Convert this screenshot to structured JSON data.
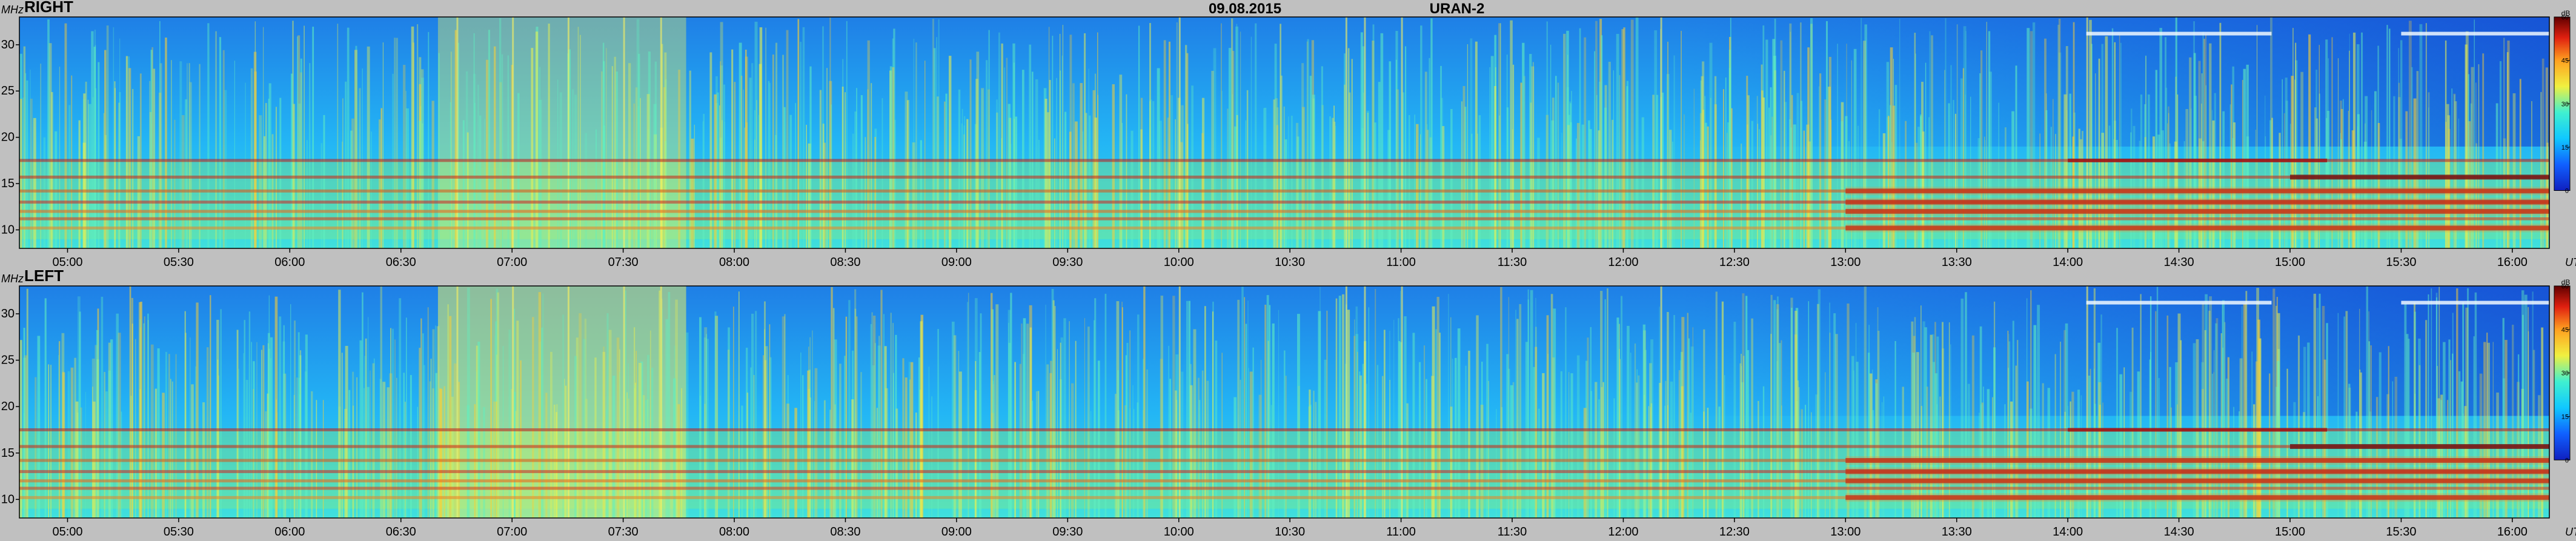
{
  "header": {
    "date": "09.08.2015",
    "instrument": "URAN-2"
  },
  "chart_data": [
    {
      "type": "heatmap",
      "title": "RIGHT",
      "ylabel": "MHz",
      "xlabel": "UT",
      "yticks": [
        10,
        15,
        20,
        25,
        30
      ],
      "ylim": [
        8,
        33
      ],
      "xticks": [
        "05:00",
        "05:30",
        "06:00",
        "06:30",
        "07:00",
        "07:30",
        "08:00",
        "08:30",
        "09:00",
        "09:30",
        "10:00",
        "10:30",
        "11:00",
        "11:30",
        "12:00",
        "12:30",
        "13:00",
        "13:30",
        "14:00",
        "14:30",
        "15:00",
        "15:30",
        "16:00"
      ],
      "xlim": [
        "04:47",
        "16:10"
      ],
      "colorbar": {
        "unit": "dB",
        "ticks": [
          0,
          15,
          30,
          45,
          60
        ],
        "range": [
          0,
          60
        ]
      },
      "bands_mhz": [
        17.5,
        15.7,
        14.2,
        13.0,
        12.0,
        11.2,
        10.2
      ],
      "strong_interval_start": "13:00"
    },
    {
      "type": "heatmap",
      "title": "LEFT",
      "ylabel": "MHz",
      "xlabel": "UT",
      "yticks": [
        10,
        15,
        20,
        25,
        30
      ],
      "ylim": [
        8,
        33
      ],
      "xticks": [
        "05:00",
        "05:30",
        "06:00",
        "06:30",
        "07:00",
        "07:30",
        "08:00",
        "08:30",
        "09:00",
        "09:30",
        "10:00",
        "10:30",
        "11:00",
        "11:30",
        "12:00",
        "12:30",
        "13:00",
        "13:30",
        "14:00",
        "14:30",
        "15:00",
        "15:30",
        "16:00"
      ],
      "xlim": [
        "04:47",
        "16:10"
      ],
      "colorbar": {
        "unit": "dB",
        "ticks": [
          0,
          15,
          30,
          45,
          60
        ],
        "range": [
          0,
          60
        ]
      },
      "bands_mhz": [
        17.5,
        15.7,
        14.2,
        13.0,
        12.0,
        11.2,
        10.2
      ],
      "strong_interval_start": "13:00"
    }
  ]
}
